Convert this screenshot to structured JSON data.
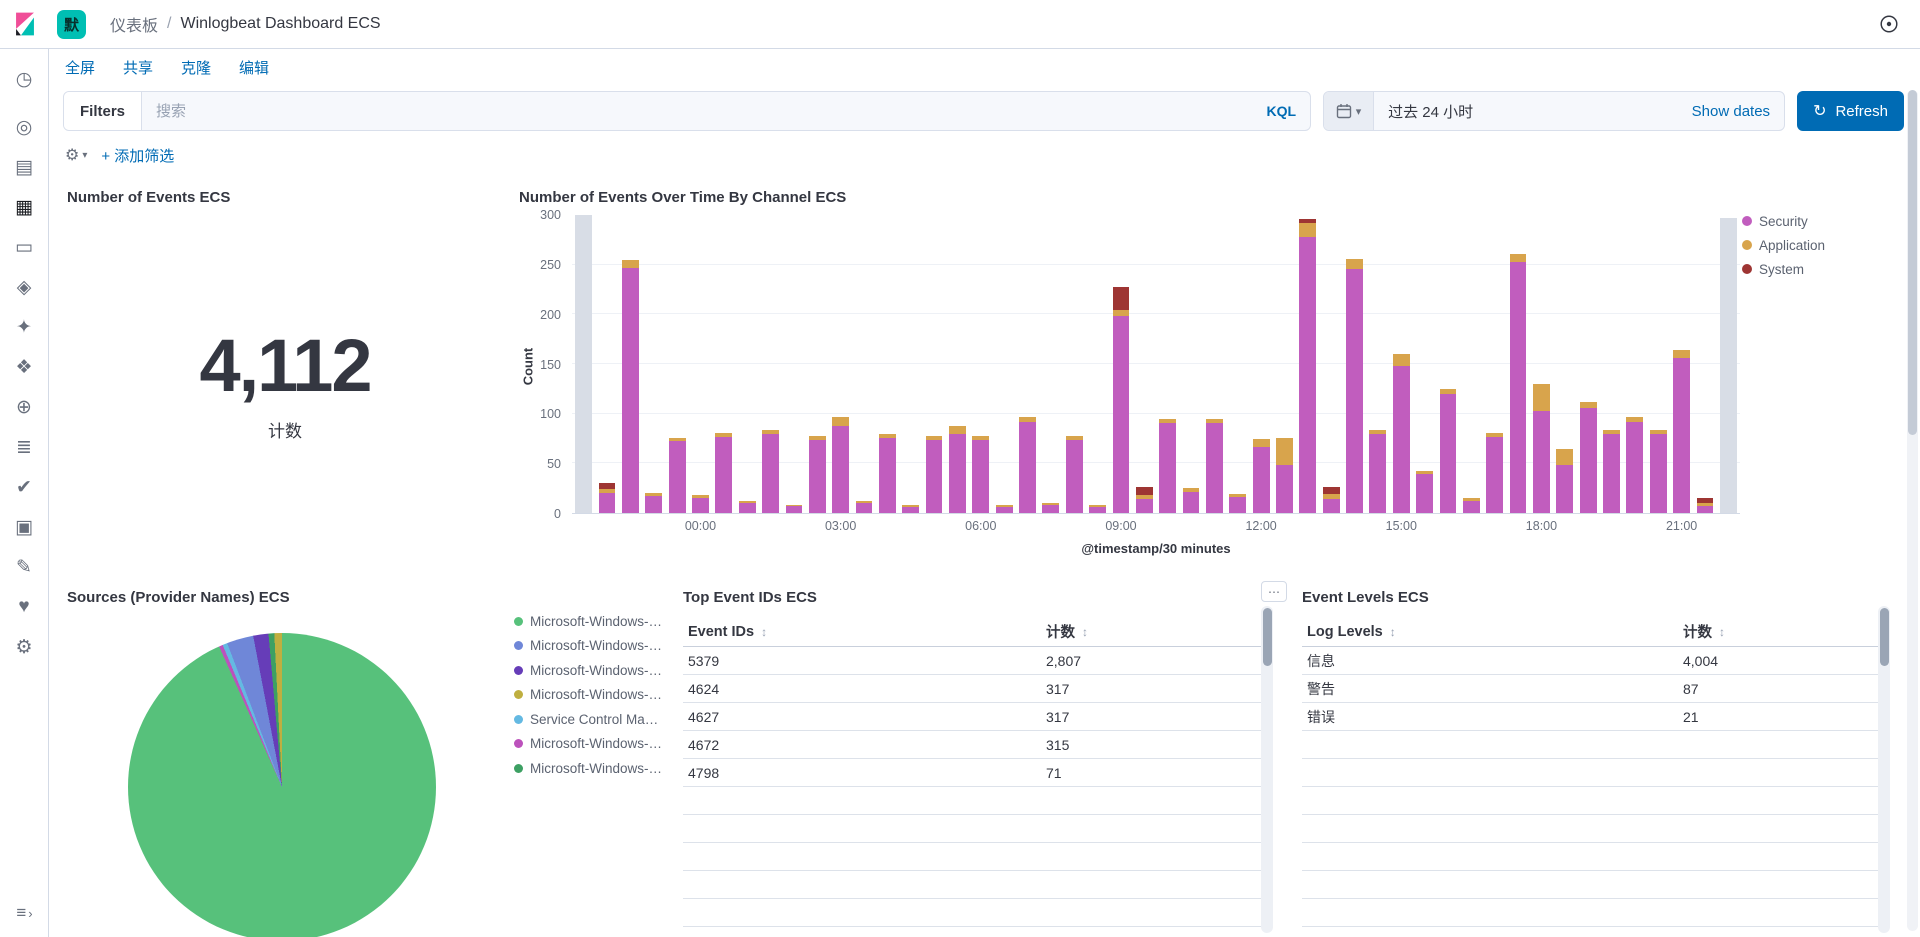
{
  "header": {
    "space_badge": "默",
    "breadcrumb_root": "仪表板",
    "breadcrumb_sep": "/",
    "breadcrumb_current": "Winlogbeat Dashboard ECS"
  },
  "sidebar": {
    "items": [
      {
        "name": "recently-viewed-icon",
        "glyph": "◷",
        "active": false
      },
      {
        "name": "discover-icon",
        "glyph": "◎",
        "active": false
      },
      {
        "name": "visualize-icon",
        "glyph": "▤",
        "active": false
      },
      {
        "name": "dashboard-icon",
        "glyph": "▦",
        "active": true
      },
      {
        "name": "canvas-icon",
        "glyph": "▭",
        "active": false
      },
      {
        "name": "maps-icon",
        "glyph": "◈",
        "active": false
      },
      {
        "name": "machine-learning-icon",
        "glyph": "✦",
        "active": false
      },
      {
        "name": "graph-icon",
        "glyph": "❖",
        "active": false
      },
      {
        "name": "apm-icon",
        "glyph": "⊕",
        "active": false
      },
      {
        "name": "logs-icon",
        "glyph": "≣",
        "active": false
      },
      {
        "name": "uptime-icon",
        "glyph": "✔",
        "active": false
      },
      {
        "name": "siem-icon",
        "glyph": "▣",
        "active": false
      },
      {
        "name": "dev-tools-icon",
        "glyph": "✎",
        "active": false
      },
      {
        "name": "monitoring-icon",
        "glyph": "♥",
        "active": false
      },
      {
        "name": "management-icon",
        "glyph": "⚙",
        "active": false
      }
    ],
    "collapse_glyph": "≡",
    "collapse_arrow_glyph": "›"
  },
  "toolbar": {
    "links": [
      {
        "label": "全屏",
        "name": "fullscreen-link"
      },
      {
        "label": "共享",
        "name": "share-link"
      },
      {
        "label": "克隆",
        "name": "clone-link"
      },
      {
        "label": "编辑",
        "name": "edit-link"
      }
    ]
  },
  "query_bar": {
    "filters_label": "Filters",
    "search_placeholder": "搜索",
    "kql_label": "KQL",
    "time_range": "过去 24 小时",
    "show_dates_label": "Show dates",
    "refresh_label": "Refresh",
    "refresh_glyph": "↻",
    "calendar_caret_glyph": "▾"
  },
  "filter_bar": {
    "gear_glyph": "⚙",
    "caret_glyph": "▾",
    "add_filter_label": "+ 添加筛选"
  },
  "ui": {
    "sort_glyph": "↕",
    "panel_menu_glyph": "⋯"
  },
  "panels": {
    "metric": {
      "title": "Number of Events ECS",
      "value": "4,112",
      "label": "计数"
    }
  },
  "chart_data": [
    {
      "type": "bar",
      "title": "Number of Events Over Time By Channel ECS",
      "stacked": true,
      "xlabel": "@timestamp/30 minutes",
      "ylabel": "Count",
      "ylim": [
        0,
        300
      ],
      "yticks": [
        0,
        50,
        100,
        150,
        200,
        250,
        300
      ],
      "xtick_labels": [
        "00:00",
        "03:00",
        "06:00",
        "09:00",
        "12:00",
        "15:00",
        "18:00",
        "21:00"
      ],
      "legend": [
        "Security",
        "Application",
        "System"
      ],
      "legend_position": "right",
      "series_colors": {
        "Security": "#c15dbe",
        "Application": "#d8a44c",
        "System": "#9e3533"
      },
      "partial_bucket_color": "#d8dde6",
      "buckets": [
        {
          "t": "21:30",
          "partial": 300
        },
        {
          "t": "22:00",
          "security": 20,
          "application": 4,
          "system": 6
        },
        {
          "t": "22:30",
          "security": 247,
          "application": 8,
          "system": 0
        },
        {
          "t": "23:00",
          "security": 17,
          "application": 3,
          "system": 0
        },
        {
          "t": "23:30",
          "security": 72,
          "application": 4,
          "system": 0
        },
        {
          "t": "00:00",
          "security": 15,
          "application": 3,
          "system": 0
        },
        {
          "t": "00:30",
          "security": 77,
          "application": 4,
          "system": 0
        },
        {
          "t": "01:00",
          "security": 10,
          "application": 2,
          "system": 0
        },
        {
          "t": "01:30",
          "security": 80,
          "application": 4,
          "system": 0
        },
        {
          "t": "02:00",
          "security": 7,
          "application": 1,
          "system": 0
        },
        {
          "t": "02:30",
          "security": 74,
          "application": 4,
          "system": 0
        },
        {
          "t": "03:00",
          "security": 88,
          "application": 9,
          "system": 0
        },
        {
          "t": "03:30",
          "security": 10,
          "application": 2,
          "system": 0
        },
        {
          "t": "04:00",
          "security": 76,
          "application": 4,
          "system": 0
        },
        {
          "t": "04:30",
          "security": 6,
          "application": 2,
          "system": 0
        },
        {
          "t": "05:00",
          "security": 74,
          "application": 4,
          "system": 0
        },
        {
          "t": "05:30",
          "security": 80,
          "application": 8,
          "system": 0
        },
        {
          "t": "06:00",
          "security": 74,
          "application": 4,
          "system": 0
        },
        {
          "t": "06:30",
          "security": 6,
          "application": 2,
          "system": 0
        },
        {
          "t": "07:00",
          "security": 92,
          "application": 5,
          "system": 0
        },
        {
          "t": "07:30",
          "security": 8,
          "application": 2,
          "system": 0
        },
        {
          "t": "08:00",
          "security": 74,
          "application": 4,
          "system": 0
        },
        {
          "t": "08:30",
          "security": 6,
          "application": 2,
          "system": 0
        },
        {
          "t": "09:00",
          "security": 198,
          "application": 6,
          "system": 24
        },
        {
          "t": "09:30",
          "security": 14,
          "application": 4,
          "system": 8
        },
        {
          "t": "10:00",
          "security": 91,
          "application": 4,
          "system": 0
        },
        {
          "t": "10:30",
          "security": 21,
          "application": 4,
          "system": 0
        },
        {
          "t": "11:00",
          "security": 91,
          "application": 4,
          "system": 0
        },
        {
          "t": "11:30",
          "security": 16,
          "application": 3,
          "system": 0
        },
        {
          "t": "12:00",
          "security": 66,
          "application": 9,
          "system": 0
        },
        {
          "t": "12:30",
          "security": 48,
          "application": 28,
          "system": 0
        },
        {
          "t": "13:00",
          "security": 278,
          "application": 14,
          "system": 4
        },
        {
          "t": "13:30",
          "security": 14,
          "application": 5,
          "system": 7
        },
        {
          "t": "14:00",
          "security": 246,
          "application": 10,
          "system": 0
        },
        {
          "t": "14:30",
          "security": 80,
          "application": 4,
          "system": 0
        },
        {
          "t": "15:00",
          "security": 148,
          "application": 12,
          "system": 0
        },
        {
          "t": "15:30",
          "security": 39,
          "application": 3,
          "system": 0
        },
        {
          "t": "16:00",
          "security": 120,
          "application": 5,
          "system": 0
        },
        {
          "t": "16:30",
          "security": 12,
          "application": 3,
          "system": 0
        },
        {
          "t": "17:00",
          "security": 77,
          "application": 4,
          "system": 0
        },
        {
          "t": "17:30",
          "security": 253,
          "application": 8,
          "system": 0
        },
        {
          "t": "18:00",
          "security": 103,
          "application": 27,
          "system": 0
        },
        {
          "t": "18:30",
          "security": 48,
          "application": 16,
          "system": 0
        },
        {
          "t": "19:00",
          "security": 106,
          "application": 6,
          "system": 0
        },
        {
          "t": "19:30",
          "security": 80,
          "application": 4,
          "system": 0
        },
        {
          "t": "20:00",
          "security": 92,
          "application": 5,
          "system": 0
        },
        {
          "t": "20:30",
          "security": 80,
          "application": 4,
          "system": 0
        },
        {
          "t": "21:00",
          "security": 156,
          "application": 8,
          "system": 0
        },
        {
          "t": "21:30",
          "security": 7,
          "application": 3,
          "system": 5
        },
        {
          "t": "21:30",
          "partial": 297
        }
      ]
    },
    {
      "type": "pie",
      "title": "Sources (Provider Names) ECS",
      "slices": [
        {
          "label": "Microsoft-Windows-…",
          "value": 93.3,
          "color": "#57c17b"
        },
        {
          "label": "Microsoft-Windows-…",
          "value": 0.4,
          "color": "#bc52bc"
        },
        {
          "label": "Service Control Man…",
          "value": 0.5,
          "color": "#64b9e2"
        },
        {
          "label": "Microsoft-Windows-…",
          "value": 2.8,
          "color": "#6f87d8"
        },
        {
          "label": "Microsoft-Windows-…",
          "value": 1.6,
          "color": "#663db8"
        },
        {
          "label": "Microsoft-Windows-…",
          "value": 0.6,
          "color": "#3da063"
        },
        {
          "label": "Microsoft-Windows-…",
          "value": 0.8,
          "color": "#bfaf40"
        }
      ],
      "legend": [
        {
          "label": "Microsoft-Windows-…",
          "color": "#57c17b"
        },
        {
          "label": "Microsoft-Windows-…",
          "color": "#6f87d8"
        },
        {
          "label": "Microsoft-Windows-…",
          "color": "#663db8"
        },
        {
          "label": "Microsoft-Windows-…",
          "color": "#bfaf40"
        },
        {
          "label": "Service Control Man…",
          "color": "#64b9e2"
        },
        {
          "label": "Microsoft-Windows-…",
          "color": "#bc52bc"
        },
        {
          "label": "Microsoft-Windows-…",
          "color": "#3da063"
        }
      ],
      "legend_position": "right"
    },
    {
      "type": "table",
      "title": "Top Event IDs ECS",
      "columns": [
        "Event IDs",
        "计数"
      ],
      "rows": [
        [
          "5379",
          "2,807"
        ],
        [
          "4624",
          "317"
        ],
        [
          "4627",
          "317"
        ],
        [
          "4672",
          "315"
        ],
        [
          "4798",
          "71"
        ]
      ]
    },
    {
      "type": "table",
      "title": "Event Levels ECS",
      "columns": [
        "Log Levels",
        "计数"
      ],
      "rows": [
        [
          "信息",
          "4,004"
        ],
        [
          "警告",
          "87"
        ],
        [
          "错误",
          "21"
        ]
      ]
    }
  ]
}
